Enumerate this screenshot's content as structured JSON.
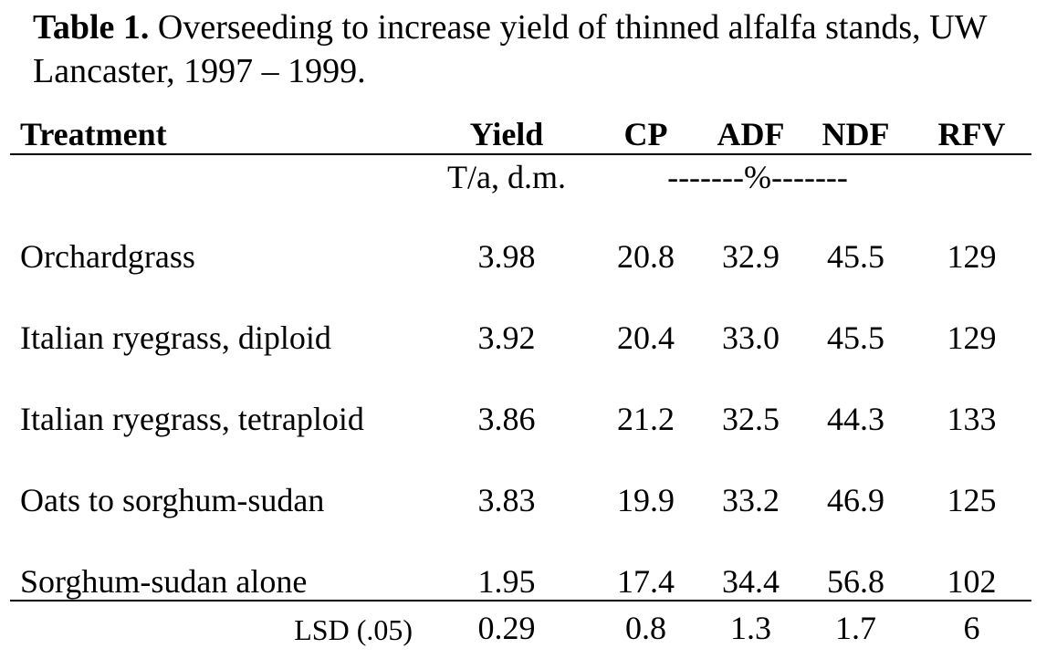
{
  "caption": {
    "label": "Table 1.",
    "text": " Overseeding to increase yield of thinned alfalfa stands, UW Lancaster, 1997 – 1999."
  },
  "headers": {
    "treatment": "Treatment",
    "yield": "Yield",
    "cp": "CP",
    "adf": "ADF",
    "ndf": "NDF",
    "rfv": "RFV"
  },
  "units": {
    "yield": "T/a, d.m.",
    "percent": "-------%-------"
  },
  "rows": [
    {
      "treatment": "Orchardgrass",
      "yield": "3.98",
      "cp": "20.8",
      "adf": "32.9",
      "ndf": "45.5",
      "rfv": "129"
    },
    {
      "treatment": "Italian ryegrass, diploid",
      "yield": "3.92",
      "cp": "20.4",
      "adf": "33.0",
      "ndf": "45.5",
      "rfv": "129"
    },
    {
      "treatment": "Italian ryegrass, tetraploid",
      "yield": "3.86",
      "cp": "21.2",
      "adf": "32.5",
      "ndf": "44.3",
      "rfv": "133"
    },
    {
      "treatment": "Oats to sorghum-sudan",
      "yield": "3.83",
      "cp": "19.9",
      "adf": "33.2",
      "ndf": "46.9",
      "rfv": "125"
    },
    {
      "treatment": "Sorghum-sudan alone",
      "yield": "1.95",
      "cp": "17.4",
      "adf": "34.4",
      "ndf": "56.8",
      "rfv": "102"
    }
  ],
  "lsd": {
    "label": "LSD (.05)",
    "yield": "0.29",
    "cp": "0.8",
    "adf": "1.3",
    "ndf": "1.7",
    "rfv": "6"
  }
}
